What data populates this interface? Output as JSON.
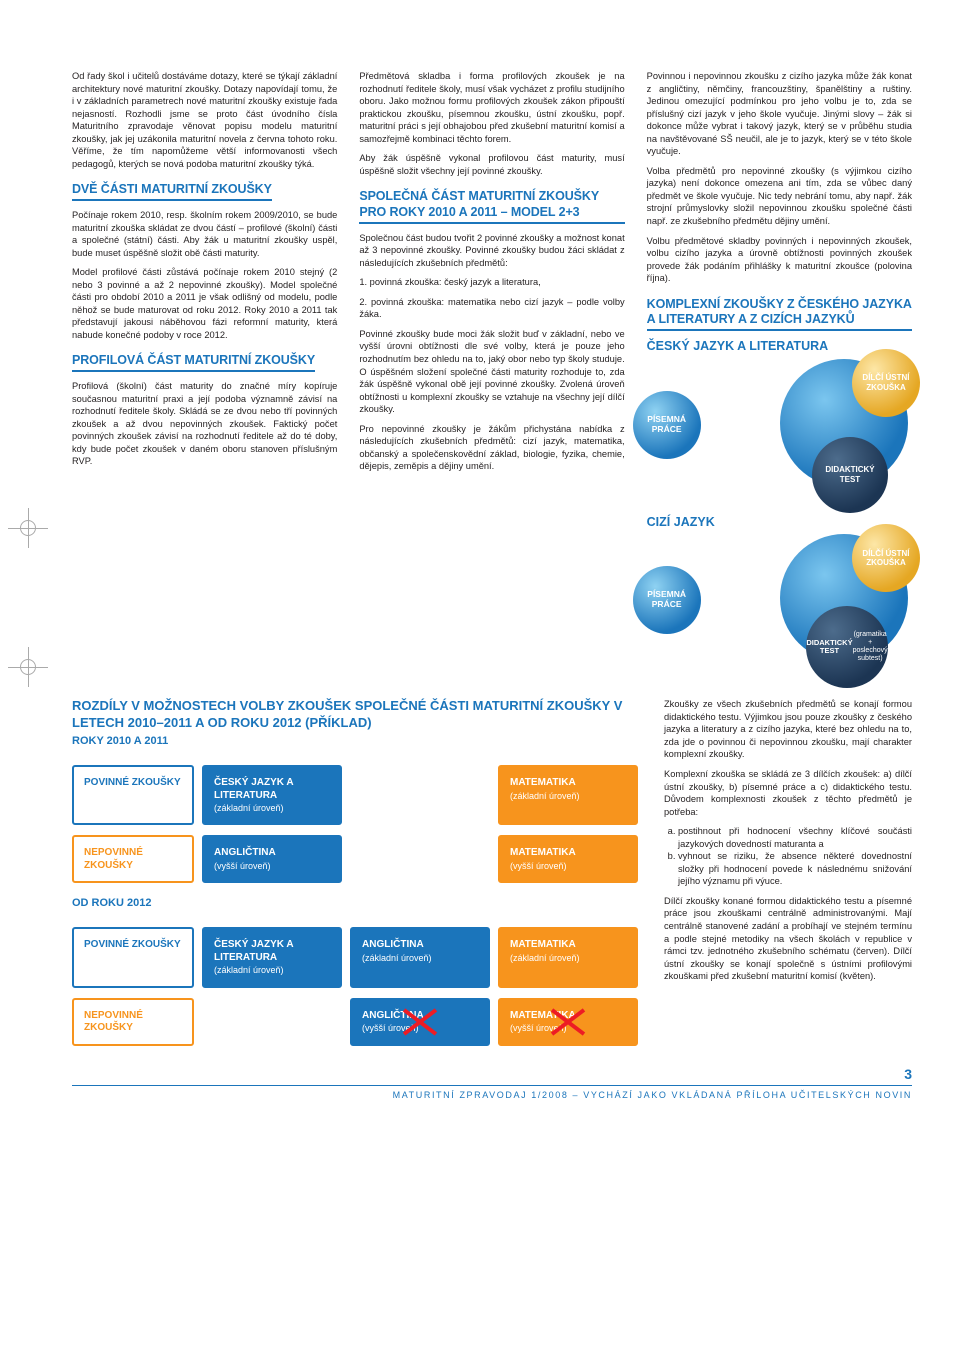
{
  "colors": {
    "brand_blue": "#1b75bb",
    "accent_orange": "#f7941d",
    "danger_red": "#ed1c24",
    "text": "#231f20",
    "circle_yellow_light": "#fde7a7",
    "circle_yellow_dark": "#e5a723",
    "circle_blue_light": "#8fd2f2",
    "circle_dark_light": "#4d6c8c",
    "circle_dark_dark": "#1c3553"
  },
  "typography": {
    "body_pt": 9.3,
    "h2_pt": 12.5
  },
  "page_number": "3",
  "footer_text": "MATURITNÍ ZPRAVODAJ 1/2008 – VYCHÁZÍ JAKO VKLÁDANÁ PŘÍLOHA UČITELSKÝCH NOVIN",
  "col1": {
    "p1": "Od řady škol i učitelů dostáváme dotazy, které se týkají základní architektury nové maturitní zkoušky. Dotazy napovídají tomu, že i v základních parametrech nové maturitní zkoušky existuje řada nejasností. Rozhodli jsme se proto část úvodního čísla Maturitního zpravodaje věnovat popisu modelu maturitní zkoušky, jak jej uzákonila maturitní novela z června tohoto roku. Věříme, že tím napomůžeme větší informovanosti všech pedagogů, kterých se nová podoba maturitní zkoušky týká.",
    "h2a": "DVĚ ČÁSTI MATURITNÍ ZKOUŠKY",
    "p2": "Počínaje rokem 2010, resp. školním rokem 2009/2010, se bude maturitní zkouška skládat ze dvou částí – profilové (školní) části a společné (státní) části. Aby žák u maturitní zkoušky uspěl, bude muset úspěšně složit obě části maturity.",
    "p3": "Model profilové části zůstává počínaje rokem 2010 stejný (2 nebo 3 povinné a až 2 nepovinné zkoušky). Model společné části pro období 2010 a 2011 je však odlišný od modelu, podle něhož se bude maturovat od roku 2012. Roky 2010 a 2011 tak představují jakousi náběhovou fázi reformní maturity, která nabude konečné podoby v roce 2012.",
    "h2b": "PROFILOVÁ ČÁST MATURITNÍ ZKOUŠKY",
    "p4": "Profilová (školní) část maturity do značné míry kopíruje současnou maturitní praxi a její podoba významně závisí na rozhodnutí ředitele školy. Skládá se ze dvou nebo tří povinných zkoušek a až dvou nepovinných zkoušek. Faktický počet povinných zkoušek závisí na rozhodnutí ředitele až do té doby, kdy bude počet zkoušek v daném oboru stanoven příslušným RVP."
  },
  "col2": {
    "p1": "Předmětová skladba i forma profilových zkoušek je na rozhodnutí ředitele školy, musí však vycházet z profilu studijního oboru. Jako možnou formu profilových zkoušek zákon připouští praktickou zkoušku, písemnou zkoušku, ústní zkoušku, popř. maturitní práci s její obhajobou před zkušební maturitní komisí a samozřejmě kombinaci těchto forem.",
    "p2": "Aby žák úspěšně vykonal profilovou část maturity, musí úspěšně složit všechny její povinné zkoušky.",
    "h2a": "SPOLEČNÁ ČÁST MATURITNÍ ZKOUŠKY PRO ROKY 2010 A 2011 – MODEL 2+3",
    "p3a": "Společnou část budou tvořit 2 povinné zkoušky a možnost konat až 3 nepovinné zkoušky. Povinné zkoušky budou žáci skládat z následujících zkušebních předmětů:",
    "li1": "1. povinná zkouška:   český jazyk a literatura,",
    "li2": "2. povinná zkouška:   matematika nebo cizí jazyk – podle volby žáka.",
    "p4": "Povinné zkoušky bude moci žák složit buď v základní, nebo ve vyšší úrovni obtížnosti dle své volby, která je pouze jeho rozhodnutím bez ohledu na to, jaký obor nebo typ školy studuje. O úspěšném složení společné části maturity rozhoduje to, zda žák úspěšně vykonal obě její povinné zkoušky. Zvolená úroveň obtížnosti u komplexní zkoušky se vztahuje na všechny její dílčí zkoušky.",
    "p5": "Pro nepovinné zkoušky je žákům přichystána nabídka z následujících zkušebních předmětů: cizí jazyk, matematika, občanský a společenskovědní základ, biologie, fyzika, chemie, dějepis, zeměpis a dějiny umění."
  },
  "col3": {
    "p1": "Povinnou i nepovinnou zkoušku z cizího jazyka může žák konat z angličtiny, němčiny, francouzštiny, španělštiny a ruštiny. Jedinou omezující podmínkou pro jeho volbu je to, zda se příslušný cizí jazyk v jeho škole vyučuje. Jinými slovy – žák si dokonce může vybrat i takový jazyk, který se v průběhu studia na navštěvované SŠ neučil, ale je to jazyk, který se v této škole vyučuje.",
    "p2": "Volba předmětů pro nepovinné zkoušky (s výjimkou cizího jazyka) není dokonce omezena ani tím, zda se vůbec daný předmět ve škole vyučuje. Nic tedy nebrání tomu, aby např. žák strojní průmyslovky složil nepovinnou zkoušku společné části např. ze zkušebního předmětu dějiny umění.",
    "p3": "Volbu předmětové skladby povinných i nepovinných zkoušek, volbu cizího jazyka a úrovně obtížnosti povinných zkoušek provede žák podáním přihlášky k maturitní zkoušce (polovina října).",
    "h2a": "KOMPLEXNÍ ZKOUŠKY Z ČESKÉHO JAZYKA A LITERATURY A Z CIZÍCH JAZYKŮ",
    "subj1": "ČESKÝ JAZYK A LITERATURA",
    "subj2": "CIZÍ JAZYK"
  },
  "circles": {
    "c1": {
      "yellow": "DÍLČÍ ÚSTNÍ ZKOUŠKA",
      "blue": "PÍSEMNÁ PRÁCE",
      "dark": "DIDAKTICKÝ TEST"
    },
    "c2": {
      "yellow": "DÍLČÍ ÚSTNÍ ZKOUŠKA",
      "blue": "PÍSEMNÁ PRÁCE",
      "dark": "DIDAKTICKÝ TEST",
      "dark_sub": "(gramatika + poslechový subtest)"
    }
  },
  "rozdily": {
    "h": "ROZDÍLY V MOŽNOSTECH VOLBY ZKOUŠEK SPOLEČNÉ ČÁSTI MATURITNÍ ZKOUŠKY V LETECH 2010–2011 A OD ROKU 2012 (příklad)",
    "sub1": "ROKY 2010 A 2011",
    "sub2": "OD ROKU 2012",
    "labels": {
      "povinne": "POVINNÉ ZKOUŠKY",
      "nepovinne": "NEPOVINNÉ ZKOUŠKY"
    },
    "rows_2010": [
      {
        "label": "povinne",
        "cells": [
          {
            "t": "ČESKÝ JAZYK A LITERATURA",
            "s": "(základní úroveň)",
            "style": "blue"
          },
          {
            "t": "MATEMATIKA",
            "s": "(základní úroveň)",
            "style": "orange"
          }
        ]
      },
      {
        "label": "nepovinne",
        "cells": [
          {
            "t": "ANGLIČTINA",
            "s": "(vyšší úroveň)",
            "style": "blue"
          },
          {
            "t": "MATEMATIKA",
            "s": "(vyšší úroveň)",
            "style": "orange"
          }
        ]
      }
    ],
    "rows_2012": [
      {
        "label": "povinne",
        "cells": [
          {
            "t": "ČESKÝ JAZYK A LITERATURA",
            "s": "(základní úroveň)",
            "style": "blue",
            "narrow": true
          },
          {
            "t": "ANGLIČTINA",
            "s": "(základní úroveň)",
            "style": "blue"
          },
          {
            "t": "MATEMATIKA",
            "s": "(základní úroveň)",
            "style": "orange"
          }
        ]
      },
      {
        "label": "nepovinne",
        "cells": [
          null,
          {
            "t": "ANGLIČTINA",
            "s": "(vyšší úroveň)",
            "style": "blue",
            "cross": true
          },
          {
            "t": "MATEMATIKA",
            "s": "(vyšší úroveň)",
            "style": "orange",
            "cross": true
          }
        ]
      }
    ]
  },
  "right_lower": {
    "p1": "Zkoušky ze všech zkušebních předmětů se konají formou didaktického testu. Výjimkou jsou pouze zkoušky z českého jazyka a literatury a z cizího jazyka, které bez ohledu na to, zda jde o povinnou či nepovinnou zkoušku, mají charakter komplexní zkoušky.",
    "p2": "Komplexní zkouška se skládá ze 3 dílčích zkoušek: a) dílčí ústní zkoušky, b) písemné práce a c) didaktického testu. Důvodem komplexnosti zkoušek z těchto předmětů je potřeba:",
    "lia": "postihnout při hodnocení všechny klíčové součásti jazykových dovedností maturanta a",
    "lib": "vyhnout se riziku, že absence některé dovednostní složky při hodnocení povede k následnému snižování jejího významu při výuce.",
    "p3": "Dílčí zkoušky konané formou didaktického testu a písemné práce jsou zkouškami centrálně administrovanými. Mají centrálně stanovené zadání a probíhají ve stejném termínu a podle stejné metodiky na všech školách v republice v rámci tzv. jednotného zkušebního schématu (červen). Dílčí ústní zkoušky se konají společně s ústními profilovými zkouškami před zkušební maturitní komisí (květen)."
  }
}
